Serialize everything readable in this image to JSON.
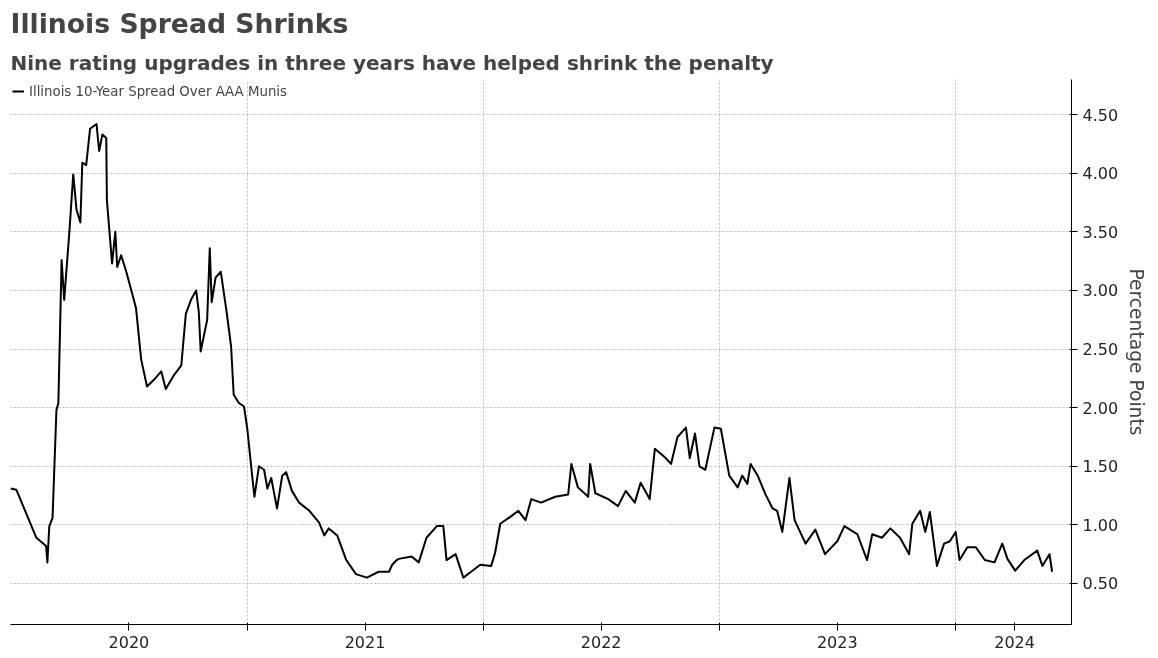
{
  "chart_data": {
    "type": "line",
    "title": "Illinois Spread Shrinks",
    "subtitle": "Nine rating upgrades in three years have helped shrink the penalty",
    "ylabel": "Percentage Points",
    "x": [
      "2020-01-01",
      "2020-01-10",
      "2020-02-10",
      "2020-02-25",
      "2020-02-27",
      "2020-03-01",
      "2020-03-06",
      "2020-03-12",
      "2020-03-15",
      "2020-03-20",
      "2020-03-24",
      "2020-04-01",
      "2020-04-07",
      "2020-04-12",
      "2020-04-18",
      "2020-04-21",
      "2020-04-27",
      "2020-05-03",
      "2020-05-13",
      "2020-05-17",
      "2020-05-22",
      "2020-05-28",
      "2020-05-29",
      "2020-06-06",
      "2020-06-11",
      "2020-06-14",
      "2020-06-20",
      "2020-06-28",
      "2020-07-13",
      "2020-07-21",
      "2020-07-30",
      "2020-08-10",
      "2020-08-21",
      "2020-08-28",
      "2020-09-10",
      "2020-09-21",
      "2020-09-28",
      "2020-10-06",
      "2020-10-14",
      "2020-10-18",
      "2020-10-21",
      "2020-10-31",
      "2020-11-04",
      "2020-11-07",
      "2020-11-13",
      "2020-11-21",
      "2020-11-30",
      "2020-12-07",
      "2020-12-11",
      "2020-12-19",
      "2020-12-27",
      "2021-01-01",
      "2021-01-07",
      "2021-01-12",
      "2021-01-19",
      "2021-01-27",
      "2021-02-01",
      "2021-02-07",
      "2021-02-16",
      "2021-02-24",
      "2021-03-02",
      "2021-03-11",
      "2021-03-22",
      "2021-04-07",
      "2021-04-22",
      "2021-04-30",
      "2021-05-07",
      "2021-05-20",
      "2021-06-03",
      "2021-06-18",
      "2021-07-05",
      "2021-07-23",
      "2021-08-08",
      "2021-08-13",
      "2021-08-20",
      "2021-08-23",
      "2021-09-12",
      "2021-09-23",
      "2021-10-05",
      "2021-10-21",
      "2021-10-31",
      "2021-11-05",
      "2021-11-19",
      "2021-12-01",
      "2021-12-20",
      "2021-12-27",
      "2022-01-13",
      "2022-01-19",
      "2022-01-27",
      "2022-02-12",
      "2022-02-24",
      "2022-03-07",
      "2022-03-16",
      "2022-03-31",
      "2022-04-22",
      "2022-05-12",
      "2022-05-17",
      "2022-05-27",
      "2022-06-12",
      "2022-06-15",
      "2022-06-23",
      "2022-07-13",
      "2022-07-28",
      "2022-08-09",
      "2022-08-23",
      "2022-09-01",
      "2022-09-15",
      "2022-09-23",
      "2022-10-08",
      "2022-10-18",
      "2022-10-28",
      "2022-11-10",
      "2022-11-16",
      "2022-11-24",
      "2022-12-01",
      "2022-12-10",
      "2022-12-24",
      "2023-01-03",
      "2023-01-16",
      "2023-01-29",
      "2023-02-05",
      "2023-02-13",
      "2023-02-18",
      "2023-03-01",
      "2023-03-13",
      "2023-03-24",
      "2023-03-31",
      "2023-04-08",
      "2023-04-19",
      "2023-04-27",
      "2023-05-14",
      "2023-05-29",
      "2023-06-13",
      "2023-07-02",
      "2023-07-13",
      "2023-08-02",
      "2023-08-17",
      "2023-08-25",
      "2023-09-09",
      "2023-09-22",
      "2023-10-07",
      "2023-10-21",
      "2023-10-26",
      "2023-11-07",
      "2023-11-15",
      "2023-11-22",
      "2023-12-03",
      "2023-12-14",
      "2023-12-23",
      "2024-01-01",
      "2024-01-07",
      "2024-01-19",
      "2024-02-01",
      "2024-02-15",
      "2024-03-01",
      "2024-03-13",
      "2024-03-21",
      "2024-04-02",
      "2024-04-16",
      "2024-05-06",
      "2024-05-14",
      "2024-05-25",
      "2024-05-29"
    ],
    "series": [
      {
        "name": "Illinois 10-Year Spread Over AAA Munis",
        "color": "#000000",
        "values": [
          1.31,
          1.3,
          0.89,
          0.82,
          0.68,
          0.99,
          1.06,
          1.98,
          2.04,
          3.26,
          2.92,
          3.5,
          3.99,
          3.69,
          3.58,
          4.09,
          4.07,
          4.38,
          4.42,
          4.19,
          4.33,
          4.3,
          3.77,
          3.23,
          3.5,
          3.2,
          3.3,
          3.16,
          2.85,
          2.41,
          2.18,
          2.24,
          2.31,
          2.16,
          2.28,
          2.36,
          2.8,
          2.92,
          3.0,
          2.82,
          2.48,
          2.75,
          3.36,
          2.9,
          3.11,
          3.16,
          2.82,
          2.52,
          2.11,
          2.04,
          2.01,
          1.82,
          1.5,
          1.24,
          1.5,
          1.47,
          1.31,
          1.4,
          1.14,
          1.42,
          1.45,
          1.29,
          1.19,
          1.12,
          1.02,
          0.91,
          0.97,
          0.91,
          0.7,
          0.58,
          0.55,
          0.6,
          0.6,
          0.66,
          0.7,
          0.71,
          0.73,
          0.68,
          0.89,
          0.99,
          0.99,
          0.7,
          0.75,
          0.55,
          0.63,
          0.66,
          0.65,
          0.76,
          1.01,
          1.07,
          1.12,
          1.04,
          1.22,
          1.19,
          1.24,
          1.26,
          1.52,
          1.32,
          1.24,
          1.52,
          1.27,
          1.22,
          1.16,
          1.29,
          1.19,
          1.36,
          1.22,
          1.65,
          1.58,
          1.52,
          1.75,
          1.83,
          1.57,
          1.78,
          1.5,
          1.47,
          1.83,
          1.82,
          1.42,
          1.32,
          1.42,
          1.35,
          1.52,
          1.42,
          1.26,
          1.14,
          1.12,
          0.94,
          1.4,
          1.04,
          0.84,
          0.96,
          0.75,
          0.86,
          0.99,
          0.92,
          0.7,
          0.92,
          0.89,
          0.97,
          0.89,
          0.75,
          1.01,
          1.12,
          0.94,
          1.11,
          0.65,
          0.84,
          0.86,
          0.94,
          0.7,
          0.81,
          0.81,
          0.7,
          0.68,
          0.84,
          0.71,
          0.61,
          0.7,
          0.78,
          0.65,
          0.75,
          0.6
        ]
      }
    ],
    "xlim": [
      "2020-01-01",
      "2024-06-28"
    ],
    "xticks": [
      {
        "value": "2020-07-02",
        "label": "2020"
      },
      {
        "value": "2021-01-01",
        "label": null
      },
      {
        "value": "2021-07-02",
        "label": "2021"
      },
      {
        "value": "2022-01-01",
        "label": null
      },
      {
        "value": "2022-07-02",
        "label": "2022"
      },
      {
        "value": "2023-01-01",
        "label": null
      },
      {
        "value": "2023-07-02",
        "label": "2023"
      },
      {
        "value": "2024-01-01",
        "label": null
      },
      {
        "value": "2024-04-01",
        "label": "2024"
      }
    ],
    "ylim": [
      0.15,
      4.8
    ],
    "yticks": [
      {
        "value": 0.5,
        "label": "0.50"
      },
      {
        "value": 1.0,
        "label": "1.00"
      },
      {
        "value": 1.5,
        "label": "1.50"
      },
      {
        "value": 2.0,
        "label": "2.00"
      },
      {
        "value": 2.5,
        "label": "2.50"
      },
      {
        "value": 3.0,
        "label": "3.00"
      },
      {
        "value": 3.5,
        "label": "3.50"
      },
      {
        "value": 4.0,
        "label": "4.00"
      },
      {
        "value": 4.5,
        "label": "4.50"
      }
    ],
    "grid": true,
    "legend": "top left",
    "line_style": "solid"
  }
}
